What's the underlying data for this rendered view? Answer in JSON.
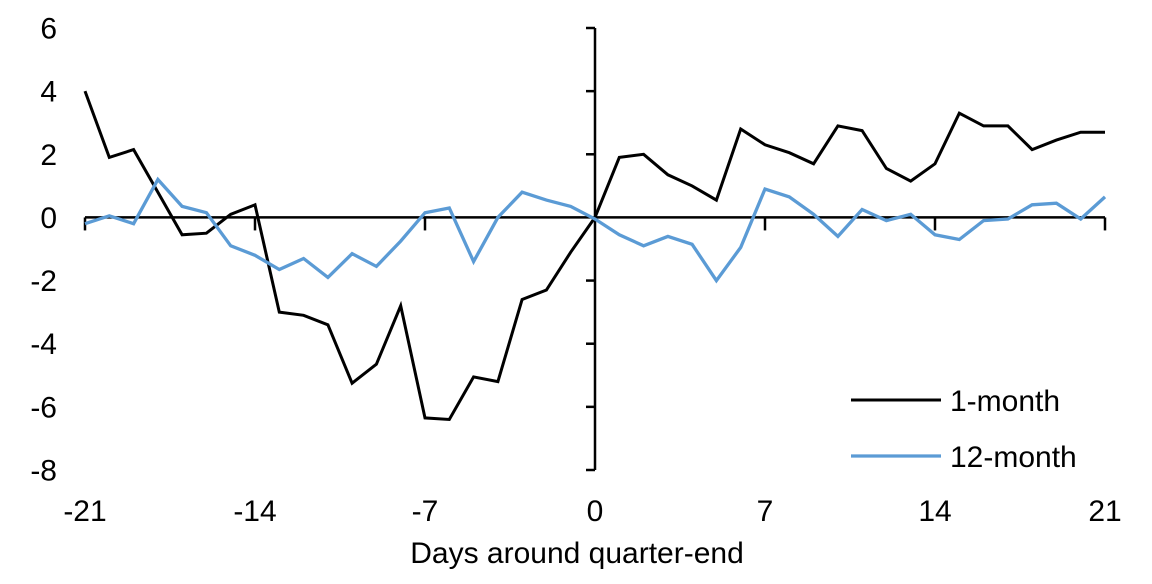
{
  "figure": {
    "background": "#ffffff"
  },
  "chart_data": {
    "type": "line",
    "title": "",
    "xlabel": "Days around quarter-end",
    "ylabel": "",
    "xlim": [
      -21,
      21
    ],
    "ylim": [
      -8,
      6
    ],
    "x_ticks": [
      -21,
      -14,
      -7,
      0,
      7,
      14,
      21
    ],
    "y_ticks": [
      6,
      4,
      2,
      0,
      -2,
      -4,
      -6,
      -8
    ],
    "grid": false,
    "legend_position": "inside-bottom-right",
    "axis_color": "#000000",
    "x": [
      -21,
      -20,
      -19,
      -18,
      -17,
      -16,
      -15,
      -14,
      -13,
      -12,
      -11,
      -10,
      -9,
      -8,
      -7,
      -6,
      -5,
      -4,
      -3,
      -2,
      -1,
      0,
      1,
      2,
      3,
      4,
      5,
      6,
      7,
      8,
      9,
      10,
      11,
      12,
      13,
      14,
      15,
      16,
      17,
      18,
      19,
      20,
      21
    ],
    "series": [
      {
        "name": "1-month",
        "color": "#000000",
        "values": [
          4,
          1.9,
          2.15,
          0.8,
          -0.55,
          -0.5,
          0.1,
          0.4,
          -3,
          -3.1,
          -3.4,
          -5.25,
          -4.65,
          -2.8,
          -6.35,
          -6.4,
          -5.05,
          -5.2,
          -2.6,
          -2.3,
          -1.1,
          0,
          1.9,
          2,
          1.35,
          1,
          0.55,
          2.8,
          2.3,
          2.05,
          1.7,
          2.9,
          2.75,
          1.55,
          1.15,
          1.7,
          3.3,
          2.9,
          2.9,
          2.15,
          2.45,
          2.7,
          2.7
        ]
      },
      {
        "name": "12-month",
        "color": "#5B9BD5",
        "values": [
          -0.2,
          0.05,
          -0.2,
          1.2,
          0.35,
          0.15,
          -0.9,
          -1.2,
          -1.65,
          -1.3,
          -1.9,
          -1.15,
          -1.55,
          -0.75,
          0.15,
          0.3,
          -1.4,
          0,
          0.8,
          0.55,
          0.35,
          -0.05,
          -0.55,
          -0.9,
          -0.6,
          -0.85,
          -2,
          -0.95,
          0.9,
          0.65,
          0.1,
          -0.6,
          0.25,
          -0.1,
          0.1,
          -0.55,
          -0.7,
          -0.1,
          -0.05,
          0.4,
          0.45,
          -0.05,
          0.65
        ]
      }
    ]
  }
}
